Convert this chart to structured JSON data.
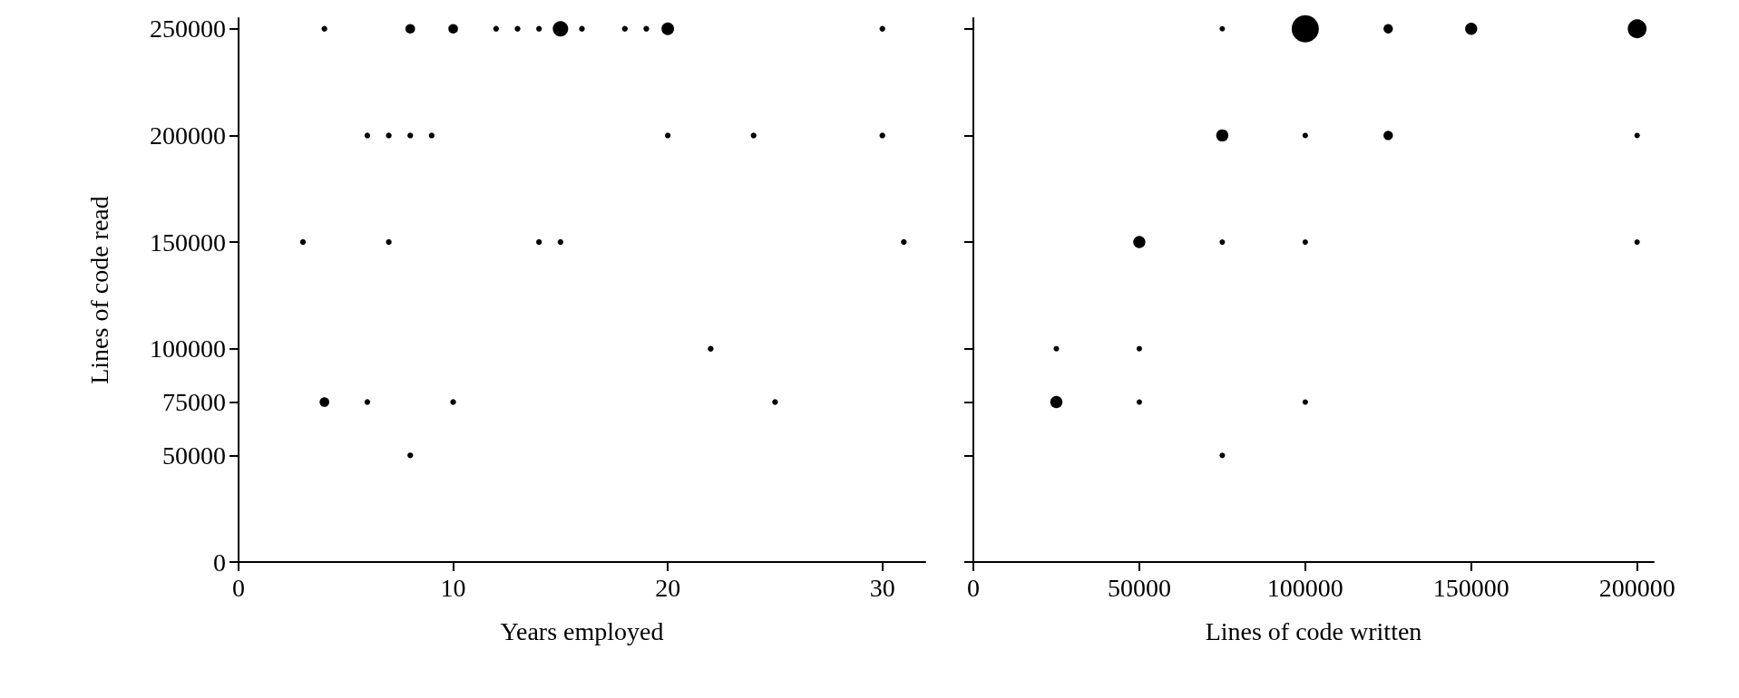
{
  "chart_data": [
    {
      "type": "bubble",
      "xlabel": "Years employed",
      "ylabel": "Lines of code read",
      "xlim": [
        0,
        32
      ],
      "xticks": [
        0,
        10,
        20,
        30
      ],
      "ylim": [
        0,
        255000
      ],
      "yticks": [
        0,
        50000,
        75000,
        100000,
        150000,
        200000,
        250000
      ],
      "grid": false,
      "marker": "circle",
      "series": [
        {
          "color": "#000000",
          "x": [
            4,
            8,
            10,
            12,
            13,
            14,
            15,
            16,
            18,
            19,
            20,
            30,
            6,
            7,
            8,
            9,
            20,
            24,
            30,
            3,
            7,
            14,
            15,
            31,
            22,
            4,
            6,
            10,
            25,
            8
          ],
          "values": [
            250000,
            250000,
            250000,
            250000,
            250000,
            250000,
            250000,
            250000,
            250000,
            250000,
            250000,
            250000,
            200000,
            200000,
            200000,
            200000,
            200000,
            200000,
            200000,
            150000,
            150000,
            150000,
            150000,
            150000,
            100000,
            75000,
            75000,
            75000,
            75000,
            50000
          ],
          "sizes": [
            0.14,
            0.39,
            0.39,
            0.14,
            0.14,
            0.14,
            1,
            0.14,
            0.14,
            0.14,
            0.66,
            0.14,
            0.14,
            0.14,
            0.14,
            0.14,
            0.14,
            0.14,
            0.14,
            0.14,
            0.14,
            0.14,
            0.14,
            0.14,
            0.14,
            0.39,
            0.14,
            0.14,
            0.14,
            0.14
          ]
        }
      ]
    },
    {
      "type": "bubble",
      "xlabel": "Lines of code written",
      "xlim": [
        0,
        205000
      ],
      "xticks": [
        0,
        50000,
        100000,
        150000,
        200000
      ],
      "ylim": [
        0,
        255000
      ],
      "yticks": [
        0,
        50000,
        75000,
        100000,
        150000,
        200000,
        250000
      ],
      "tick_labels": "x",
      "grid": false,
      "marker": "circle",
      "series": [
        {
          "color": "#000000",
          "x": [
            75000,
            100000,
            125000,
            150000,
            200000,
            75000,
            100000,
            125000,
            200000,
            50000,
            75000,
            100000,
            200000,
            25000,
            50000,
            25000,
            50000,
            100000,
            75000
          ],
          "values": [
            250000,
            250000,
            250000,
            250000,
            250000,
            200000,
            200000,
            200000,
            200000,
            150000,
            150000,
            150000,
            150000,
            100000,
            100000,
            75000,
            75000,
            75000,
            50000
          ],
          "sizes": [
            0.04,
            1,
            0.12,
            0.2,
            0.48,
            0.2,
            0.04,
            0.12,
            0.04,
            0.2,
            0.04,
            0.04,
            0.04,
            0.04,
            0.04,
            0.2,
            0.04,
            0.04,
            0.04
          ]
        }
      ]
    }
  ]
}
